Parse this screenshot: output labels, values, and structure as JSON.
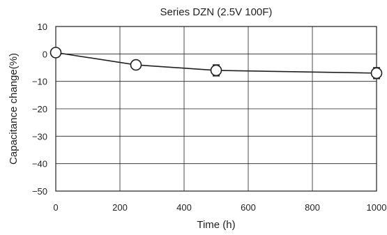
{
  "chart_data": {
    "type": "line",
    "title": "Series DZN (2.5V 100F)",
    "xlabel": "Time (h)",
    "ylabel": "Capacitance change(%)",
    "xlim": [
      0,
      1000
    ],
    "ylim": [
      -50,
      10
    ],
    "xticks": [
      "0",
      "200",
      "400",
      "600",
      "800",
      "1000"
    ],
    "yticks": [
      "10",
      "0",
      "−10",
      "−20",
      "−30",
      "−40",
      "−50"
    ],
    "grid": true,
    "series": [
      {
        "x": [
          0,
          250,
          500,
          1000
        ],
        "y": [
          0.5,
          -4,
          -6,
          -7
        ],
        "error": [
          0,
          0,
          2,
          2
        ]
      }
    ],
    "colors": {
      "line": "#231f20",
      "grid": "#231f20",
      "marker_fill": "#ffffff"
    }
  }
}
